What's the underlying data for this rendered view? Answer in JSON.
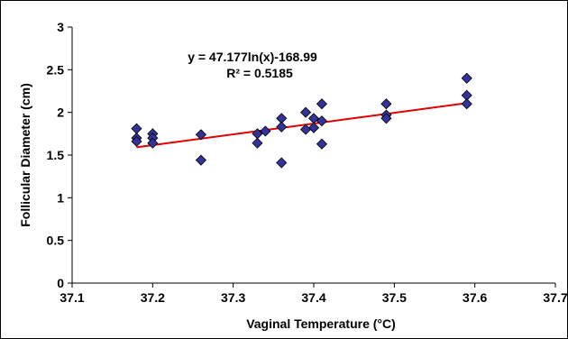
{
  "chart_data": {
    "type": "scatter",
    "xlabel": "Vaginal Temperature (°C)",
    "ylabel": "Follicular Diameter (cm)",
    "xlim": [
      37.1,
      37.7
    ],
    "ylim": [
      0,
      3
    ],
    "x_ticks": [
      "37.1",
      "37.2",
      "37.3",
      "37.4",
      "37.5",
      "37.6",
      "37.7"
    ],
    "y_ticks": [
      "0",
      "0.5",
      "1",
      "1.5",
      "2",
      "2.5",
      "3"
    ],
    "grid": false,
    "legend": "none",
    "marker_color": "#33339a",
    "trendline_color": "#e00000",
    "points": [
      {
        "x": 37.18,
        "y": 1.81
      },
      {
        "x": 37.18,
        "y": 1.7
      },
      {
        "x": 37.18,
        "y": 1.66
      },
      {
        "x": 37.2,
        "y": 1.75
      },
      {
        "x": 37.2,
        "y": 1.7
      },
      {
        "x": 37.2,
        "y": 1.64
      },
      {
        "x": 37.26,
        "y": 1.74
      },
      {
        "x": 37.26,
        "y": 1.44
      },
      {
        "x": 37.33,
        "y": 1.75
      },
      {
        "x": 37.33,
        "y": 1.64
      },
      {
        "x": 37.34,
        "y": 1.78
      },
      {
        "x": 37.36,
        "y": 1.93
      },
      {
        "x": 37.36,
        "y": 1.83
      },
      {
        "x": 37.36,
        "y": 1.41
      },
      {
        "x": 37.39,
        "y": 2.0
      },
      {
        "x": 37.39,
        "y": 1.8
      },
      {
        "x": 37.4,
        "y": 1.93
      },
      {
        "x": 37.4,
        "y": 1.82
      },
      {
        "x": 37.41,
        "y": 2.1
      },
      {
        "x": 37.41,
        "y": 1.9
      },
      {
        "x": 37.41,
        "y": 1.63
      },
      {
        "x": 37.49,
        "y": 2.1
      },
      {
        "x": 37.49,
        "y": 1.97
      },
      {
        "x": 37.49,
        "y": 1.93
      },
      {
        "x": 37.59,
        "y": 2.4
      },
      {
        "x": 37.59,
        "y": 2.2
      },
      {
        "x": 37.59,
        "y": 2.1
      }
    ],
    "trendline": {
      "x_start": 37.18,
      "x_end": 37.59,
      "equation": "y = 47.177ln(x)-168.99",
      "r_squared": "R² = 0.5185"
    }
  }
}
